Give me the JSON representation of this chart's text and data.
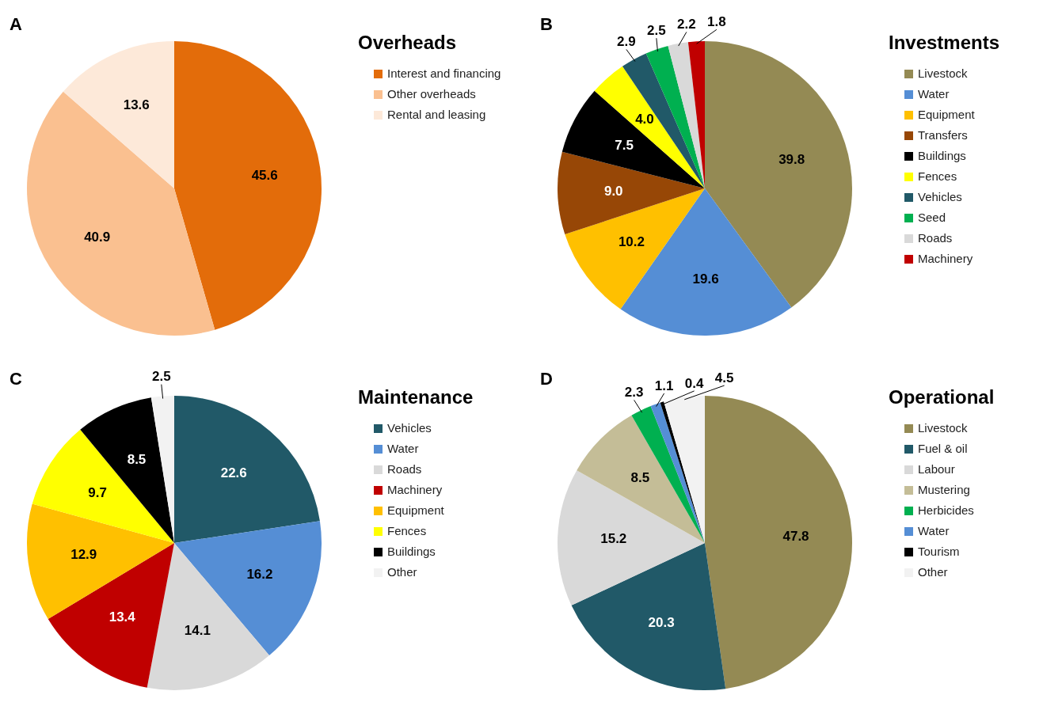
{
  "chart_data": [
    {
      "type": "pie",
      "title": "Overheads",
      "annotations": [
        "A"
      ],
      "legend": "right",
      "data_labels": true,
      "categories": [
        "Interest and financing",
        "Other overheads",
        "Rental and leasing"
      ],
      "values": [
        45.6,
        40.9,
        13.6
      ],
      "colors": [
        "#e36c0a",
        "#fac090",
        "#fde9d9"
      ]
    },
    {
      "type": "pie",
      "title": "Investments",
      "annotations": [
        "B"
      ],
      "legend": "right",
      "value_labels": [
        "39.8",
        "19.6",
        "10.2",
        "9.0",
        "7.5",
        "4.0",
        "2.9",
        "2.5",
        "2.2",
        "1.8"
      ],
      "categories": [
        "Livestock",
        "Water",
        "Equipment",
        "Transfers",
        "Buildings",
        "Fences",
        "Vehicles",
        "Seed",
        "Roads",
        "Machinery"
      ],
      "values": [
        39.8,
        19.6,
        10.2,
        9.0,
        7.5,
        4.0,
        2.9,
        2.5,
        2.2,
        1.8
      ],
      "colors": [
        "#948a54",
        "#558ed5",
        "#ffc000",
        "#974706",
        "#000000",
        "#ffff00",
        "#215968",
        "#00b050",
        "#d9d9d9",
        "#c00000"
      ]
    },
    {
      "type": "pie",
      "title": "Maintenance",
      "annotations": [
        "C"
      ],
      "legend": "right",
      "data_labels": true,
      "categories": [
        "Vehicles",
        "Water",
        "Roads",
        "Machinery",
        "Equipment",
        "Fences",
        "Buildings",
        "Other"
      ],
      "values": [
        22.6,
        16.2,
        14.1,
        13.4,
        12.9,
        9.7,
        8.5,
        2.5
      ],
      "colors": [
        "#215968",
        "#558ed5",
        "#d9d9d9",
        "#c00000",
        "#ffc000",
        "#ffff00",
        "#000000",
        "#f2f2f2"
      ]
    },
    {
      "type": "pie",
      "title": "Operational",
      "annotations": [
        "D"
      ],
      "legend": "right",
      "data_labels": true,
      "categories": [
        "Livestock",
        "Fuel & oil",
        "Labour",
        "Mustering",
        "Herbicides",
        "Water",
        "Tourism",
        "Other"
      ],
      "values": [
        47.8,
        20.3,
        15.2,
        8.5,
        2.3,
        1.1,
        0.4,
        4.5
      ],
      "colors": [
        "#948a54",
        "#215968",
        "#d9d9d9",
        "#c4bd97",
        "#00b050",
        "#558ed5",
        "#000000",
        "#f2f2f2"
      ]
    }
  ]
}
